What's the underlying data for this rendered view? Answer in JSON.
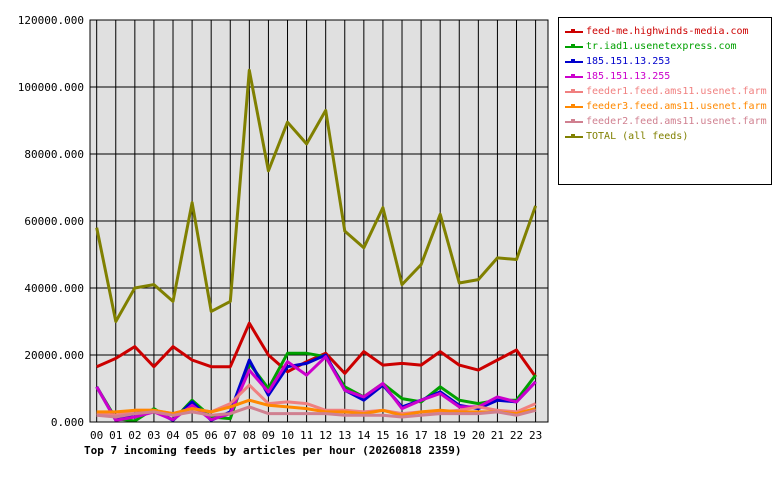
{
  "chart_data": {
    "type": "line",
    "title": "Top 7 incoming feeds by articles per hour (20260818 2359)",
    "xlabel": "",
    "ylabel": "",
    "x": [
      "00",
      "01",
      "02",
      "03",
      "04",
      "05",
      "06",
      "07",
      "08",
      "09",
      "10",
      "11",
      "12",
      "13",
      "14",
      "15",
      "16",
      "17",
      "18",
      "19",
      "20",
      "21",
      "22",
      "23"
    ],
    "yticks": [
      "0.000",
      "20000.000",
      "40000.000",
      "60000.000",
      "80000.000",
      "100000.000",
      "120000.000"
    ],
    "ylim": [
      0,
      120000
    ],
    "grid": true,
    "legend_position": "right",
    "series": [
      {
        "name": "feed-me.highwinds-media.com",
        "color": "#cc0000",
        "values": [
          16500,
          19000,
          22500,
          16500,
          22500,
          18500,
          16500,
          16500,
          29500,
          20000,
          15000,
          18000,
          20500,
          14500,
          21000,
          17000,
          17500,
          17000,
          21000,
          17000,
          15500,
          18500,
          21500,
          13500
        ]
      },
      {
        "name": "tr.iad1.usenetexpress.com",
        "color": "#00a000",
        "values": [
          10500,
          1000,
          300,
          4000,
          500,
          6500,
          1500,
          1000,
          17500,
          10000,
          20500,
          20500,
          19500,
          10500,
          7500,
          11500,
          7000,
          6000,
          10500,
          6500,
          5500,
          6500,
          6500,
          14000
        ]
      },
      {
        "name": "185.151.13.253",
        "color": "#0000cc",
        "values": [
          10500,
          500,
          2500,
          3500,
          500,
          6000,
          500,
          3000,
          18500,
          8000,
          16500,
          17500,
          20000,
          9500,
          6500,
          11000,
          4500,
          6500,
          9000,
          5000,
          4000,
          6500,
          6000,
          12000
        ]
      },
      {
        "name": "185.151.13.255",
        "color": "#cc00cc",
        "values": [
          10500,
          500,
          1500,
          3000,
          700,
          5000,
          700,
          2500,
          15500,
          9000,
          18000,
          14000,
          19500,
          9500,
          7500,
          11500,
          4000,
          6500,
          8500,
          4500,
          4500,
          7500,
          6000,
          12000
        ]
      },
      {
        "name": "feeder1.feed.ams11.usenet.farm",
        "color": "#f08080",
        "values": [
          2500,
          2000,
          3500,
          3500,
          2500,
          4000,
          3000,
          5500,
          11000,
          5500,
          6000,
          5500,
          3500,
          3500,
          3000,
          3500,
          2500,
          3000,
          3000,
          3500,
          4500,
          3500,
          3000,
          5500
        ]
      },
      {
        "name": "feeder3.feed.ams11.usenet.farm",
        "color": "#ff8800",
        "values": [
          3000,
          3000,
          3500,
          3500,
          2500,
          4000,
          3000,
          4500,
          6500,
          5000,
          4500,
          4000,
          3000,
          3000,
          2500,
          3500,
          2000,
          3000,
          3500,
          3000,
          3000,
          3000,
          2500,
          4000
        ]
      },
      {
        "name": "feeder2.feed.ams11.usenet.farm",
        "color": "#d08090",
        "values": [
          2000,
          1500,
          2500,
          3000,
          2000,
          3000,
          2000,
          2500,
          4500,
          2500,
          2500,
          2500,
          2500,
          2000,
          2000,
          2000,
          1500,
          2000,
          2500,
          2500,
          2500,
          3000,
          2000,
          3500
        ]
      },
      {
        "name": "TOTAL (all feeds)",
        "color": "#808000",
        "values": [
          58000,
          30000,
          40000,
          41000,
          36000,
          65500,
          33000,
          36000,
          105000,
          75000,
          89500,
          83000,
          93000,
          57000,
          52000,
          64000,
          41000,
          47000,
          62000,
          41500,
          42500,
          49000,
          48500,
          64500
        ]
      }
    ]
  }
}
